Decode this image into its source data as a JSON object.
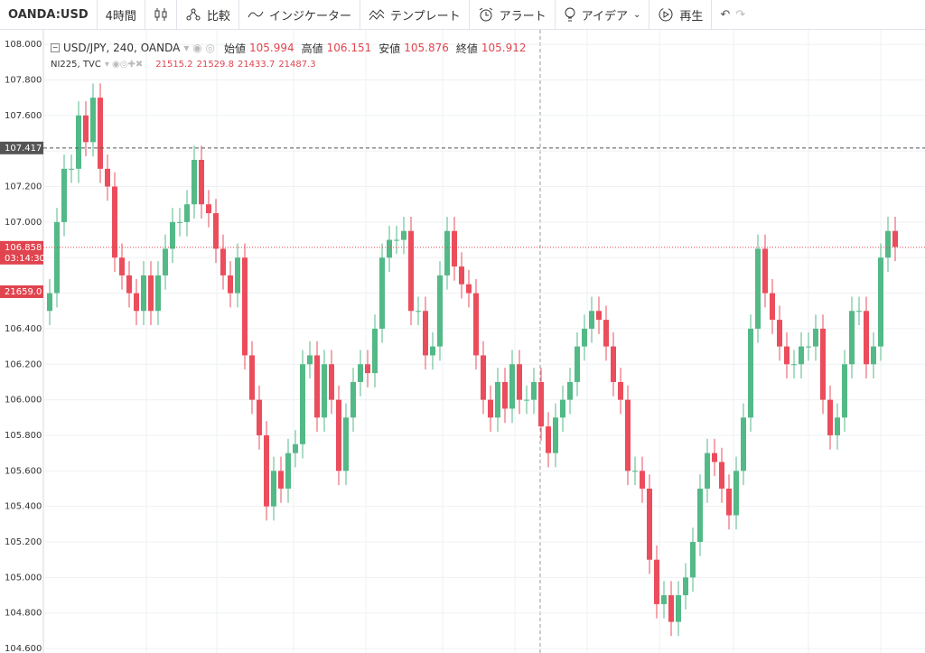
{
  "toolbar": {
    "symbol": "OANDA:USD",
    "interval": "4時間",
    "compare": "比較",
    "indicators": "インジケーター",
    "templates": "テンプレート",
    "alert": "アラート",
    "ideas": "アイデア",
    "replay": "再生"
  },
  "chart_data": {
    "type": "candlestick",
    "title": "USD/JPY, 240, OANDA",
    "ohlc_labels": [
      "始値",
      "高値",
      "安値",
      "終値"
    ],
    "ohlc_values": [
      105.994,
      106.151,
      105.876,
      105.912
    ],
    "overlay_name": "NI225, TVC",
    "overlay_values": [
      21515.2,
      21529.8,
      21433.7,
      21487.3
    ],
    "overlay_price_label": {
      "value": 21659,
      "label": "21659.0"
    },
    "up_color": "#53b987",
    "down_color": "#eb4d5c",
    "ylim": [
      104.575,
      108.082
    ],
    "yticks": [
      {
        "value": 104.6,
        "label": "104.600"
      },
      {
        "value": 104.8,
        "label": "104.800"
      },
      {
        "value": 105,
        "label": "105.000"
      },
      {
        "value": 105.2,
        "label": "105.200"
      },
      {
        "value": 105.4,
        "label": "105.400"
      },
      {
        "value": 105.6,
        "label": "105.600"
      },
      {
        "value": 105.8,
        "label": "105.800"
      },
      {
        "value": 106,
        "label": "106.000"
      },
      {
        "value": 106.2,
        "label": "106.200"
      },
      {
        "value": 106.4,
        "label": "106.400"
      },
      {
        "value": 106.6,
        "label": "106.600"
      },
      {
        "value": 106.8,
        "label": "106.800"
      },
      {
        "value": 107,
        "label": "107.000"
      },
      {
        "value": 107.2,
        "label": "107.200"
      },
      {
        "value": 107.4,
        "label": "107.400"
      },
      {
        "value": 107.6,
        "label": "107.600"
      },
      {
        "value": 107.8,
        "label": "107.800"
      },
      {
        "value": 108,
        "label": "108.000"
      }
    ],
    "grid": true,
    "price_lines": [
      {
        "value": 107.417,
        "color": "#555555"
      },
      {
        "value": 106.858,
        "color": "#e0444e",
        "countdown": "03:14:30"
      }
    ],
    "open": [
      106.5,
      106.6,
      107.0,
      107.3,
      107.3,
      107.6,
      107.45,
      107.7,
      107.3,
      107.2,
      106.8,
      106.7,
      106.6,
      106.5,
      106.7,
      106.5,
      106.7,
      106.85,
      107.0,
      107.0,
      107.1,
      107.35,
      107.1,
      107.05,
      106.85,
      106.7,
      106.6,
      106.8,
      106.25,
      106.0,
      105.8,
      105.4,
      105.6,
      105.5,
      105.7,
      105.75,
      106.2,
      106.25,
      105.9,
      106.2,
      106.0,
      105.6,
      105.9,
      106.1,
      106.2,
      106.15,
      106.4,
      106.8,
      106.9,
      106.9,
      106.95,
      106.5,
      106.5,
      106.25,
      106.3,
      106.7,
      106.95,
      106.75,
      106.65,
      106.6,
      106.25,
      106.0,
      105.9,
      106.1,
      105.95,
      106.2,
      106.0,
      106.0,
      106.1,
      105.85,
      105.7,
      105.9,
      106.0,
      106.1,
      106.3,
      106.4,
      106.5,
      106.45,
      106.3,
      106.1,
      106.0,
      105.6,
      105.6,
      105.5,
      105.1,
      104.85,
      104.9,
      104.75,
      104.9,
      105.0,
      105.2,
      105.5,
      105.7,
      105.65,
      105.5,
      105.35,
      105.6,
      105.9,
      106.4,
      106.85,
      106.6,
      106.45,
      106.3,
      106.2,
      106.2,
      106.3,
      106.3,
      106.4,
      106.0,
      105.8,
      105.9,
      106.2,
      106.5,
      106.5,
      106.2,
      106.3,
      106.8,
      106.95
    ],
    "high": [
      106.68,
      107.08,
      107.38,
      107.38,
      107.68,
      107.68,
      107.78,
      107.78,
      107.38,
      107.28,
      106.88,
      106.78,
      106.68,
      106.78,
      106.78,
      106.78,
      106.93,
      107.08,
      107.08,
      107.18,
      107.43,
      107.43,
      107.18,
      107.13,
      106.93,
      106.78,
      106.88,
      106.88,
      106.33,
      106.08,
      105.88,
      105.68,
      105.68,
      105.78,
      105.83,
      106.28,
      106.33,
      106.33,
      106.28,
      106.28,
      106.08,
      105.98,
      106.18,
      106.28,
      106.28,
      106.48,
      106.88,
      106.98,
      106.98,
      107.03,
      107.03,
      106.58,
      106.58,
      106.38,
      106.78,
      107.03,
      107.03,
      106.83,
      106.73,
      106.68,
      106.33,
      106.08,
      106.18,
      106.18,
      106.28,
      106.28,
      106.08,
      106.18,
      106.18,
      105.93,
      105.98,
      106.08,
      106.18,
      106.38,
      106.48,
      106.58,
      106.58,
      106.53,
      106.38,
      106.18,
      106.08,
      105.68,
      105.68,
      105.58,
      105.18,
      104.98,
      104.98,
      104.98,
      105.08,
      105.28,
      105.58,
      105.78,
      105.78,
      105.73,
      105.58,
      105.68,
      105.98,
      106.48,
      106.93,
      106.93,
      106.68,
      106.53,
      106.38,
      106.28,
      106.38,
      106.38,
      106.48,
      106.48,
      106.08,
      105.98,
      106.28,
      106.58,
      106.58,
      106.58,
      106.38,
      106.88,
      107.03,
      107.03
    ],
    "low": [
      106.42,
      106.52,
      106.92,
      107.22,
      107.22,
      107.37,
      107.37,
      107.22,
      107.12,
      106.72,
      106.62,
      106.52,
      106.42,
      106.42,
      106.42,
      106.42,
      106.62,
      106.77,
      106.92,
      106.92,
      107.02,
      107.02,
      106.97,
      106.77,
      106.62,
      106.52,
      106.52,
      106.17,
      105.92,
      105.72,
      105.32,
      105.32,
      105.42,
      105.42,
      105.62,
      105.67,
      106.12,
      105.82,
      105.82,
      105.92,
      105.52,
      105.52,
      105.82,
      106.02,
      106.07,
      106.07,
      106.32,
      106.72,
      106.82,
      106.82,
      106.42,
      106.42,
      106.17,
      106.17,
      106.22,
      106.62,
      106.67,
      106.57,
      106.52,
      106.17,
      105.92,
      105.82,
      105.82,
      105.87,
      105.87,
      105.92,
      105.92,
      105.92,
      105.77,
      105.62,
      105.62,
      105.82,
      105.92,
      106.02,
      106.22,
      106.32,
      106.37,
      106.22,
      106.02,
      105.92,
      105.52,
      105.52,
      105.42,
      105.02,
      104.77,
      104.77,
      104.67,
      104.67,
      104.82,
      104.92,
      105.12,
      105.42,
      105.57,
      105.42,
      105.27,
      105.27,
      105.52,
      105.82,
      106.32,
      106.52,
      106.37,
      106.22,
      106.12,
      106.12,
      106.12,
      106.22,
      106.22,
      105.92,
      105.72,
      105.72,
      105.82,
      106.12,
      106.42,
      106.12,
      106.12,
      106.22,
      106.72,
      106.78
    ],
    "close": [
      106.6,
      107.0,
      107.3,
      107.3,
      107.6,
      107.45,
      107.7,
      107.3,
      107.2,
      106.8,
      106.7,
      106.6,
      106.5,
      106.7,
      106.5,
      106.7,
      106.85,
      107.0,
      107.0,
      107.1,
      107.35,
      107.1,
      107.05,
      106.85,
      106.7,
      106.6,
      106.8,
      106.25,
      106.0,
      105.8,
      105.4,
      105.6,
      105.5,
      105.7,
      105.75,
      106.2,
      106.25,
      105.9,
      106.2,
      106.0,
      105.6,
      105.9,
      106.1,
      106.2,
      106.15,
      106.4,
      106.8,
      106.9,
      106.9,
      106.95,
      106.5,
      106.5,
      106.25,
      106.3,
      106.7,
      106.95,
      106.75,
      106.65,
      106.6,
      106.25,
      106.0,
      105.9,
      106.1,
      105.95,
      106.2,
      106.0,
      106.0,
      106.1,
      105.85,
      105.7,
      105.9,
      106.0,
      106.1,
      106.3,
      106.4,
      106.5,
      106.45,
      106.3,
      106.1,
      106.0,
      105.6,
      105.6,
      105.5,
      105.1,
      104.85,
      104.9,
      104.75,
      104.9,
      105.0,
      105.2,
      105.5,
      105.7,
      105.65,
      105.5,
      105.35,
      105.6,
      105.9,
      106.4,
      106.85,
      106.6,
      106.45,
      106.3,
      106.2,
      106.2,
      106.3,
      106.3,
      106.4,
      106.0,
      105.8,
      105.9,
      106.2,
      106.5,
      106.5,
      106.2,
      106.3,
      106.8,
      106.95,
      106.86
    ]
  }
}
